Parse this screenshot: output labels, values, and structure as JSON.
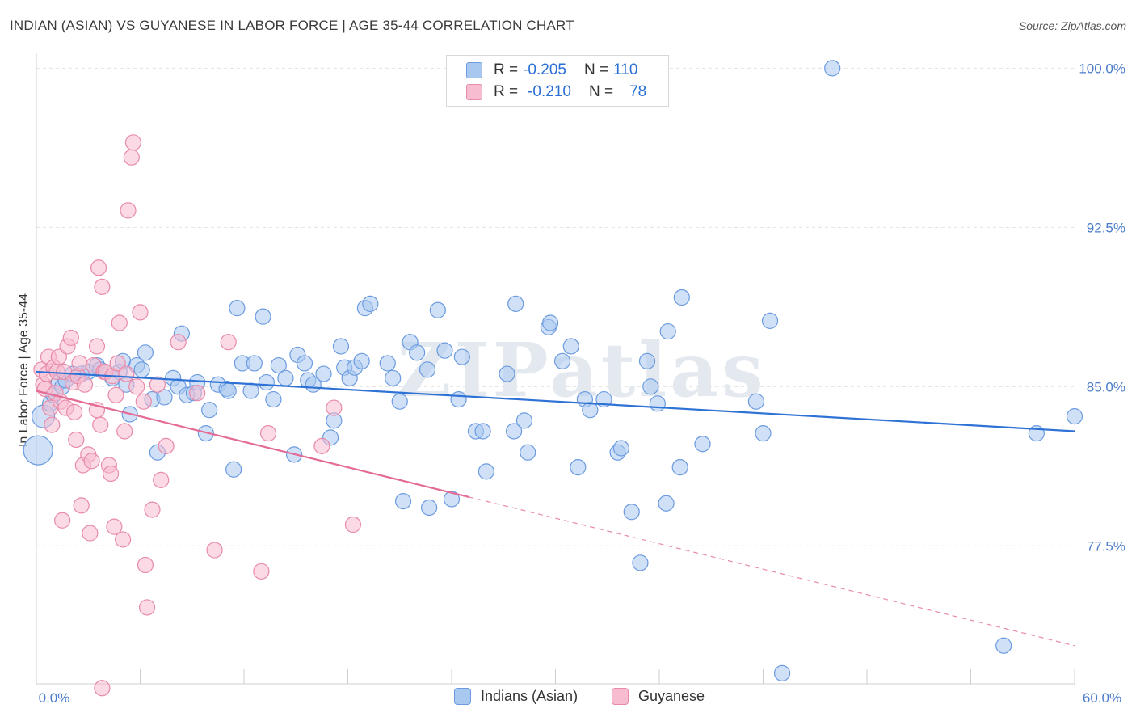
{
  "title": "INDIAN (ASIAN) VS GUYANESE IN LABOR FORCE | AGE 35-44 CORRELATION CHART",
  "source": "Source: ZipAtlas.com",
  "watermark": "ZIPatlas",
  "legend": {
    "rows": [
      {
        "r_label": "R =",
        "r_value": "-0.205",
        "n_label": "N =",
        "n_value": "110",
        "color": "#a9c8f0",
        "border": "#6b9be0"
      },
      {
        "r_label": "R =",
        "r_value": "-0.210",
        "n_label": "N =",
        "n_value": "78",
        "color": "#f7bcd0",
        "border": "#e88aaa"
      }
    ]
  },
  "chart_data": {
    "type": "scatter",
    "title": "INDIAN (ASIAN) VS GUYANESE IN LABOR FORCE | AGE 35-44 CORRELATION CHART",
    "xlabel": "",
    "ylabel": "In Labor Force | Age 35-44",
    "xlim": [
      0,
      60
    ],
    "ylim": [
      71.0,
      100.7
    ],
    "x_tick_labels": [
      "0.0%",
      "60.0%"
    ],
    "y_ticks": [
      77.5,
      85.0,
      92.5,
      100.0
    ],
    "y_tick_labels": [
      "77.5%",
      "85.0%",
      "92.5%",
      "100.0%"
    ],
    "grid": true,
    "series": [
      {
        "name": "Indians (Asian)",
        "color": "#6b9be0",
        "fill": "#a9c8f0",
        "trend": {
          "x0": 0,
          "y0": 85.7,
          "x1": 60,
          "y1": 82.9
        },
        "points": [
          [
            0.1,
            82.0
          ],
          [
            0.4,
            83.6
          ],
          [
            0.8,
            84.2
          ],
          [
            1.0,
            84.6
          ],
          [
            1.3,
            85.2
          ],
          [
            1.5,
            85.0
          ],
          [
            1.7,
            85.3
          ],
          [
            2.1,
            85.6
          ],
          [
            2.6,
            85.6
          ],
          [
            3.0,
            85.7
          ],
          [
            3.5,
            86.0
          ],
          [
            3.7,
            85.8
          ],
          [
            4.4,
            85.4
          ],
          [
            4.8,
            85.7
          ],
          [
            5.0,
            86.2
          ],
          [
            5.2,
            85.1
          ],
          [
            5.4,
            83.7
          ],
          [
            5.8,
            86.0
          ],
          [
            6.1,
            85.8
          ],
          [
            6.3,
            86.6
          ],
          [
            6.7,
            84.4
          ],
          [
            7.0,
            81.9
          ],
          [
            7.4,
            84.5
          ],
          [
            7.9,
            85.4
          ],
          [
            8.2,
            85.0
          ],
          [
            8.4,
            87.5
          ],
          [
            8.7,
            84.6
          ],
          [
            9.1,
            84.7
          ],
          [
            9.3,
            85.2
          ],
          [
            9.8,
            82.8
          ],
          [
            10.0,
            83.9
          ],
          [
            10.5,
            85.1
          ],
          [
            11.0,
            84.9
          ],
          [
            11.1,
            84.8
          ],
          [
            11.4,
            81.1
          ],
          [
            11.6,
            88.7
          ],
          [
            11.9,
            86.1
          ],
          [
            12.4,
            84.8
          ],
          [
            12.6,
            86.1
          ],
          [
            13.1,
            88.3
          ],
          [
            13.3,
            85.2
          ],
          [
            13.7,
            84.4
          ],
          [
            14.0,
            86.0
          ],
          [
            14.4,
            85.4
          ],
          [
            14.9,
            81.8
          ],
          [
            15.1,
            86.5
          ],
          [
            15.5,
            86.1
          ],
          [
            15.7,
            85.3
          ],
          [
            16.0,
            85.1
          ],
          [
            16.6,
            85.6
          ],
          [
            17.0,
            82.6
          ],
          [
            17.2,
            83.4
          ],
          [
            17.6,
            86.9
          ],
          [
            17.8,
            85.9
          ],
          [
            18.1,
            85.4
          ],
          [
            18.4,
            85.9
          ],
          [
            18.8,
            86.2
          ],
          [
            19.0,
            88.7
          ],
          [
            19.3,
            88.9
          ],
          [
            20.3,
            86.1
          ],
          [
            20.6,
            85.4
          ],
          [
            21.0,
            84.3
          ],
          [
            21.2,
            79.6
          ],
          [
            21.6,
            87.1
          ],
          [
            22.0,
            86.6
          ],
          [
            22.6,
            85.8
          ],
          [
            22.7,
            79.3
          ],
          [
            23.2,
            88.6
          ],
          [
            23.6,
            86.7
          ],
          [
            24.0,
            79.7
          ],
          [
            24.4,
            84.4
          ],
          [
            24.6,
            86.4
          ],
          [
            25.4,
            82.9
          ],
          [
            25.8,
            82.9
          ],
          [
            26.0,
            81.0
          ],
          [
            27.2,
            85.6
          ],
          [
            27.6,
            82.9
          ],
          [
            27.7,
            88.9
          ],
          [
            28.2,
            83.4
          ],
          [
            28.4,
            81.9
          ],
          [
            29.6,
            87.8
          ],
          [
            29.7,
            88.0
          ],
          [
            30.4,
            86.2
          ],
          [
            30.9,
            86.9
          ],
          [
            31.3,
            81.2
          ],
          [
            31.7,
            84.4
          ],
          [
            32.0,
            83.9
          ],
          [
            32.8,
            84.4
          ],
          [
            33.6,
            81.9
          ],
          [
            33.8,
            82.1
          ],
          [
            34.4,
            79.1
          ],
          [
            34.9,
            76.7
          ],
          [
            35.3,
            86.2
          ],
          [
            35.5,
            85.0
          ],
          [
            35.9,
            84.2
          ],
          [
            36.4,
            79.5
          ],
          [
            36.5,
            87.6
          ],
          [
            37.2,
            81.2
          ],
          [
            37.3,
            89.2
          ],
          [
            38.5,
            82.3
          ],
          [
            41.6,
            84.3
          ],
          [
            42.0,
            82.8
          ],
          [
            42.4,
            88.1
          ],
          [
            43.1,
            71.5
          ],
          [
            46.0,
            100.0
          ],
          [
            55.9,
            72.8
          ],
          [
            57.8,
            82.8
          ],
          [
            60.0,
            83.6
          ]
        ]
      },
      {
        "name": "Guyanese",
        "color": "#e88aaa",
        "fill": "#f7bcd0",
        "trend": {
          "x0": 0,
          "y0": 84.8,
          "x1": 25.0,
          "y1": 79.8
        },
        "trend_dash": {
          "x0": 25.0,
          "y0": 79.8,
          "x1": 60,
          "y1": 72.8
        },
        "points": [
          [
            0.3,
            85.8
          ],
          [
            0.4,
            85.1
          ],
          [
            0.5,
            84.9
          ],
          [
            0.6,
            85.6
          ],
          [
            0.7,
            86.4
          ],
          [
            0.8,
            84.0
          ],
          [
            0.9,
            83.2
          ],
          [
            1.0,
            85.9
          ],
          [
            1.1,
            84.7
          ],
          [
            1.2,
            85.7
          ],
          [
            1.3,
            86.4
          ],
          [
            1.4,
            84.3
          ],
          [
            1.5,
            78.7
          ],
          [
            1.6,
            85.7
          ],
          [
            1.7,
            84.0
          ],
          [
            1.8,
            86.9
          ],
          [
            2.0,
            87.3
          ],
          [
            2.1,
            85.2
          ],
          [
            2.2,
            83.8
          ],
          [
            2.3,
            82.5
          ],
          [
            2.4,
            85.5
          ],
          [
            2.5,
            86.1
          ],
          [
            2.6,
            79.4
          ],
          [
            2.7,
            81.3
          ],
          [
            2.8,
            85.1
          ],
          [
            3.0,
            81.8
          ],
          [
            3.1,
            78.1
          ],
          [
            3.2,
            81.5
          ],
          [
            3.3,
            86.0
          ],
          [
            3.5,
            83.9
          ],
          [
            3.5,
            86.9
          ],
          [
            3.6,
            90.6
          ],
          [
            3.7,
            83.2
          ],
          [
            3.8,
            89.7
          ],
          [
            3.9,
            85.7
          ],
          [
            4.0,
            85.7
          ],
          [
            4.2,
            81.3
          ],
          [
            4.3,
            80.9
          ],
          [
            4.4,
            85.5
          ],
          [
            4.5,
            78.4
          ],
          [
            4.6,
            84.6
          ],
          [
            4.7,
            86.1
          ],
          [
            4.8,
            88.0
          ],
          [
            5.0,
            77.8
          ],
          [
            5.1,
            82.9
          ],
          [
            5.2,
            85.6
          ],
          [
            5.3,
            93.3
          ],
          [
            5.5,
            95.8
          ],
          [
            5.6,
            96.5
          ],
          [
            5.8,
            85.0
          ],
          [
            6.0,
            88.5
          ],
          [
            6.2,
            84.3
          ],
          [
            6.3,
            76.6
          ],
          [
            6.4,
            74.6
          ],
          [
            6.7,
            79.2
          ],
          [
            7.0,
            85.1
          ],
          [
            7.2,
            80.6
          ],
          [
            7.5,
            82.2
          ],
          [
            8.2,
            87.1
          ],
          [
            9.3,
            84.7
          ],
          [
            10.3,
            77.3
          ],
          [
            11.1,
            87.1
          ],
          [
            13.0,
            76.3
          ],
          [
            13.4,
            82.8
          ],
          [
            16.5,
            82.2
          ],
          [
            17.2,
            84.0
          ],
          [
            18.3,
            78.5
          ],
          [
            3.8,
            70.8
          ]
        ]
      }
    ]
  },
  "bottom_legend": [
    {
      "label": "Indians (Asian)",
      "color": "#a9c8f0",
      "border": "#6b9be0"
    },
    {
      "label": "Guyanese",
      "color": "#f7bcd0",
      "border": "#e88aaa"
    }
  ]
}
